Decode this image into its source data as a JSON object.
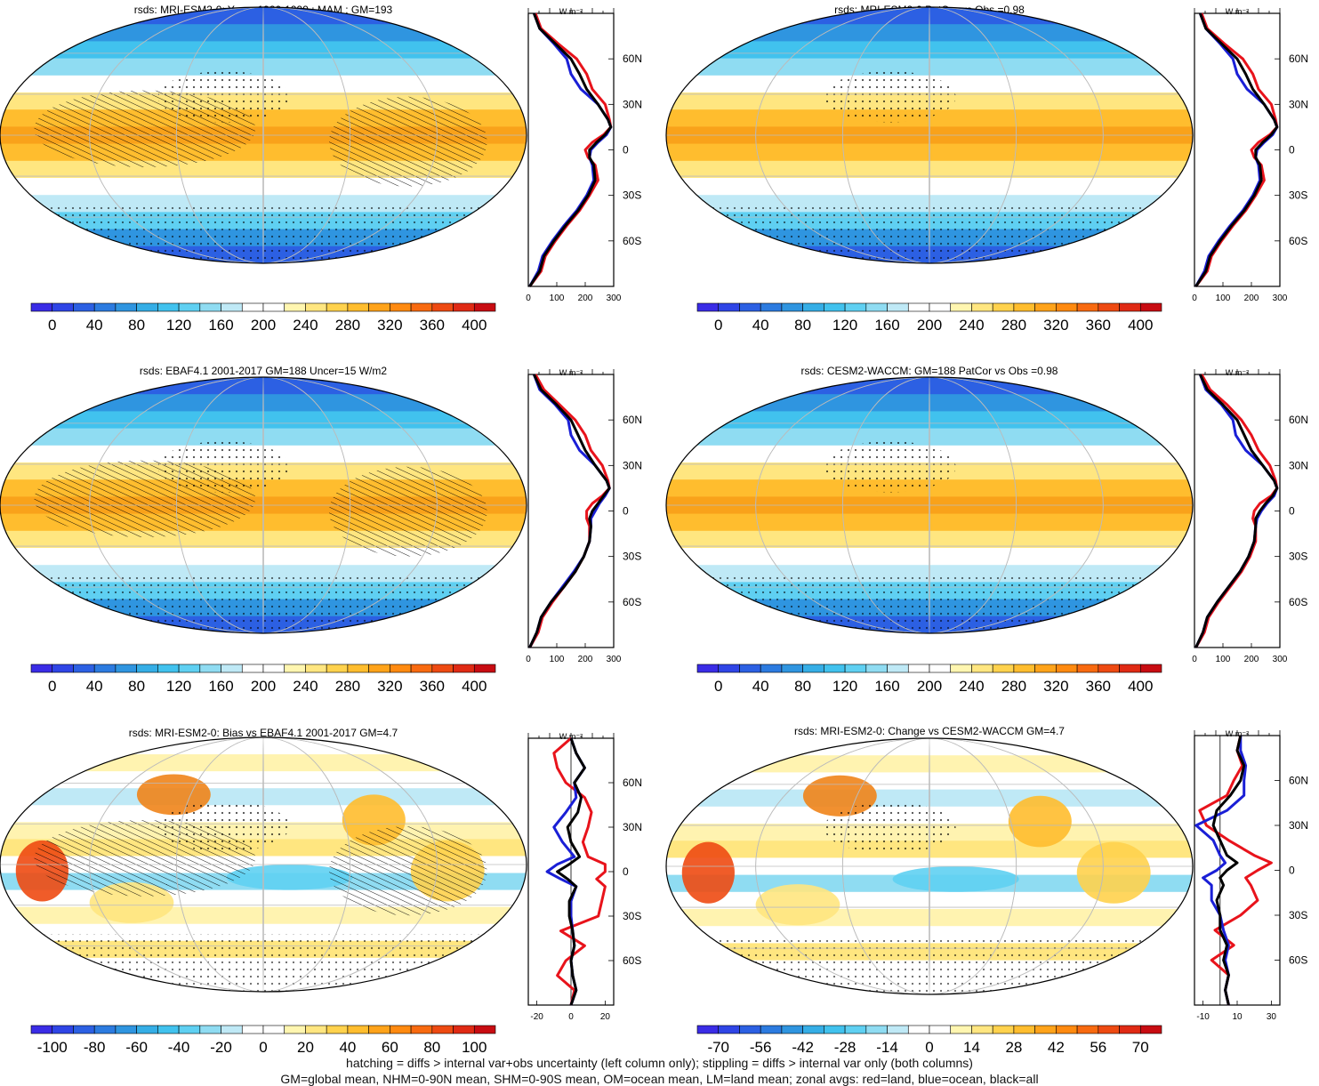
{
  "footer": {
    "line1": "hatching = diffs > internal var+obs uncertainty (left column only); stippling = diffs > internal var only (both columns)",
    "line2": "GM=global mean, NHM=0-90N mean, SHM=0-90S mean, OM=ocean mean, LM=land mean; zonal avgs: red=land, blue=ocean, black=all"
  },
  "profile_unit": "W m⁻²",
  "latitude_ticks": [
    "60N",
    "30N",
    "0",
    "30S",
    "60S"
  ],
  "colors": {
    "land": "#e8131b",
    "ocean": "#1a1fd6",
    "all": "#000000"
  },
  "chart_data": [
    {
      "id": "p1",
      "type": "map",
      "title": "rsds: MRI-ESM2-0: Years 1980-1999 : MAM : GM=193",
      "colorbar_labels": [
        "0",
        "40",
        "80",
        "120",
        "160",
        "200",
        "240",
        "280",
        "320",
        "360",
        "400"
      ],
      "field_kind": "abs",
      "hatching": true,
      "stippling": true,
      "profile": {
        "xlim": [
          0,
          300
        ],
        "x_ticks": [
          "0",
          "100",
          "200",
          "300"
        ],
        "lat": [
          90,
          80,
          70,
          60,
          50,
          40,
          30,
          20,
          15,
          10,
          5,
          0,
          -5,
          -10,
          -20,
          -30,
          -40,
          -50,
          -60,
          -70,
          -80,
          -90
        ],
        "all": [
          20,
          40,
          95,
          150,
          180,
          205,
          245,
          280,
          290,
          270,
          240,
          215,
          215,
          230,
          235,
          210,
          175,
          130,
          90,
          55,
          40,
          5
        ],
        "land": [
          25,
          45,
          105,
          170,
          205,
          225,
          270,
          285,
          290,
          265,
          225,
          200,
          210,
          235,
          245,
          215,
          180,
          135,
          95,
          60,
          45,
          5
        ],
        "ocean": [
          20,
          40,
          90,
          135,
          150,
          185,
          245,
          280,
          290,
          275,
          245,
          220,
          215,
          225,
          230,
          205,
          170,
          125,
          85,
          50,
          35,
          5
        ]
      }
    },
    {
      "id": "p2",
      "type": "map",
      "title": "rsds: MRI-ESM2-0 PatCor vs Obs =0.98",
      "colorbar_labels": [
        "0",
        "40",
        "80",
        "120",
        "160",
        "200",
        "240",
        "280",
        "320",
        "360",
        "400"
      ],
      "field_kind": "abs",
      "hatching": false,
      "stippling": true,
      "profile": {
        "xlim": [
          0,
          300
        ],
        "x_ticks": [
          "0",
          "100",
          "200",
          "300"
        ],
        "lat": [
          90,
          80,
          70,
          60,
          50,
          40,
          30,
          20,
          15,
          10,
          5,
          0,
          -5,
          -10,
          -20,
          -30,
          -40,
          -50,
          -60,
          -70,
          -80,
          -90
        ],
        "all": [
          20,
          40,
          95,
          150,
          180,
          205,
          245,
          280,
          290,
          270,
          240,
          215,
          215,
          230,
          235,
          210,
          175,
          130,
          90,
          55,
          40,
          5
        ],
        "land": [
          25,
          45,
          105,
          170,
          205,
          225,
          270,
          285,
          290,
          265,
          225,
          200,
          210,
          235,
          245,
          215,
          180,
          135,
          95,
          60,
          45,
          5
        ],
        "ocean": [
          20,
          40,
          90,
          135,
          150,
          185,
          245,
          280,
          290,
          275,
          245,
          220,
          215,
          225,
          230,
          205,
          170,
          125,
          85,
          50,
          35,
          5
        ]
      }
    },
    {
      "id": "p3",
      "type": "map",
      "title": "rsds: EBAF4.1 2001-2017 GM=188 Uncer=15 W/m2",
      "colorbar_labels": [
        "0",
        "40",
        "80",
        "120",
        "160",
        "200",
        "240",
        "280",
        "320",
        "360",
        "400"
      ],
      "field_kind": "abs",
      "hatching": true,
      "stippling": true,
      "profile": {
        "xlim": [
          0,
          300
        ],
        "x_ticks": [
          "0",
          "100",
          "200",
          "300"
        ],
        "lat": [
          90,
          80,
          70,
          60,
          50,
          40,
          30,
          20,
          15,
          10,
          5,
          0,
          -5,
          -10,
          -20,
          -30,
          -40,
          -50,
          -60,
          -70,
          -80,
          -90
        ],
        "all": [
          20,
          45,
          100,
          150,
          175,
          200,
          235,
          275,
          285,
          265,
          245,
          225,
          215,
          220,
          215,
          195,
          165,
          125,
          80,
          45,
          30,
          5
        ],
        "land": [
          25,
          55,
          110,
          165,
          200,
          220,
          260,
          280,
          285,
          260,
          225,
          205,
          205,
          215,
          215,
          195,
          165,
          125,
          85,
          50,
          35,
          5
        ],
        "ocean": [
          20,
          40,
          95,
          140,
          150,
          180,
          235,
          275,
          285,
          270,
          250,
          235,
          220,
          220,
          215,
          195,
          160,
          120,
          80,
          45,
          30,
          5
        ]
      }
    },
    {
      "id": "p4",
      "type": "map",
      "title": "rsds: CESM2-WACCM: GM=188 PatCor vs Obs =0.98",
      "colorbar_labels": [
        "0",
        "40",
        "80",
        "120",
        "160",
        "200",
        "240",
        "280",
        "320",
        "360",
        "400"
      ],
      "field_kind": "abs",
      "hatching": false,
      "stippling": true,
      "profile": {
        "xlim": [
          0,
          300
        ],
        "x_ticks": [
          "0",
          "100",
          "200",
          "300"
        ],
        "lat": [
          90,
          80,
          70,
          60,
          50,
          40,
          30,
          20,
          15,
          10,
          5,
          0,
          -5,
          -10,
          -20,
          -30,
          -40,
          -50,
          -60,
          -70,
          -80,
          -90
        ],
        "all": [
          20,
          45,
          100,
          150,
          175,
          200,
          240,
          280,
          290,
          275,
          250,
          230,
          215,
          215,
          210,
          190,
          160,
          120,
          80,
          45,
          30,
          5
        ],
        "land": [
          25,
          55,
          115,
          165,
          200,
          225,
          265,
          285,
          290,
          270,
          230,
          210,
          205,
          215,
          215,
          195,
          165,
          125,
          85,
          50,
          35,
          5
        ],
        "ocean": [
          20,
          40,
          95,
          135,
          145,
          180,
          240,
          280,
          290,
          280,
          255,
          235,
          220,
          215,
          210,
          190,
          160,
          120,
          80,
          45,
          30,
          5
        ]
      }
    },
    {
      "id": "p5",
      "type": "map",
      "title": "rsds: MRI-ESM2-0: Bias vs EBAF4.1 2001-2017 GM=4.7",
      "colorbar_labels": [
        "-100",
        "-80",
        "-60",
        "-40",
        "-20",
        "0",
        "20",
        "40",
        "60",
        "80",
        "100"
      ],
      "field_kind": "diff",
      "hatching": true,
      "stippling": true,
      "profile": {
        "xlim": [
          -25,
          25
        ],
        "x_ticks": [
          "-20",
          "0",
          "20"
        ],
        "lat": [
          90,
          80,
          70,
          60,
          50,
          40,
          30,
          20,
          10,
          5,
          0,
          -5,
          -10,
          -20,
          -30,
          -40,
          -50,
          -60,
          -70,
          -80,
          -90
        ],
        "all": [
          0,
          3,
          8,
          2,
          6,
          4,
          -2,
          0,
          5,
          -1,
          -8,
          -2,
          3,
          -1,
          -1,
          1,
          2,
          0,
          1,
          3,
          0
        ],
        "land": [
          0,
          -10,
          -8,
          -3,
          8,
          12,
          10,
          7,
          10,
          20,
          20,
          15,
          20,
          18,
          16,
          -6,
          8,
          -3,
          -8,
          2,
          0
        ],
        "ocean": [
          0,
          3,
          8,
          2,
          3,
          -3,
          -10,
          -5,
          2,
          -8,
          -14,
          -6,
          3,
          0,
          0,
          1,
          2,
          0,
          1,
          3,
          0
        ]
      }
    },
    {
      "id": "p6",
      "type": "map",
      "title": "rsds: MRI-ESM2-0: Change vs CESM2-WACCM GM=4.7",
      "colorbar_labels": [
        "-70",
        "-56",
        "-42",
        "-28",
        "-14",
        "0",
        "14",
        "28",
        "42",
        "56",
        "70"
      ],
      "field_kind": "diff",
      "hatching": false,
      "stippling": true,
      "profile": {
        "xlim": [
          -15,
          35
        ],
        "x_ticks": [
          "-10",
          "10",
          "30"
        ],
        "lat": [
          90,
          80,
          70,
          60,
          50,
          40,
          30,
          20,
          10,
          5,
          0,
          -5,
          -10,
          -20,
          -30,
          -40,
          -50,
          -60,
          -70,
          -80,
          -90
        ],
        "all": [
          12,
          10,
          14,
          12,
          6,
          -2,
          -4,
          0,
          4,
          10,
          4,
          0,
          2,
          -2,
          0,
          0,
          4,
          2,
          5,
          3,
          5
        ],
        "land": [
          12,
          10,
          13,
          8,
          4,
          -12,
          -8,
          5,
          20,
          30,
          22,
          15,
          18,
          22,
          12,
          -3,
          8,
          -5,
          5,
          3,
          5
        ],
        "ocean": [
          12,
          12,
          15,
          14,
          14,
          4,
          -14,
          -4,
          0,
          3,
          -2,
          -10,
          -5,
          -5,
          0,
          2,
          5,
          3,
          5,
          3,
          5
        ]
      }
    }
  ]
}
